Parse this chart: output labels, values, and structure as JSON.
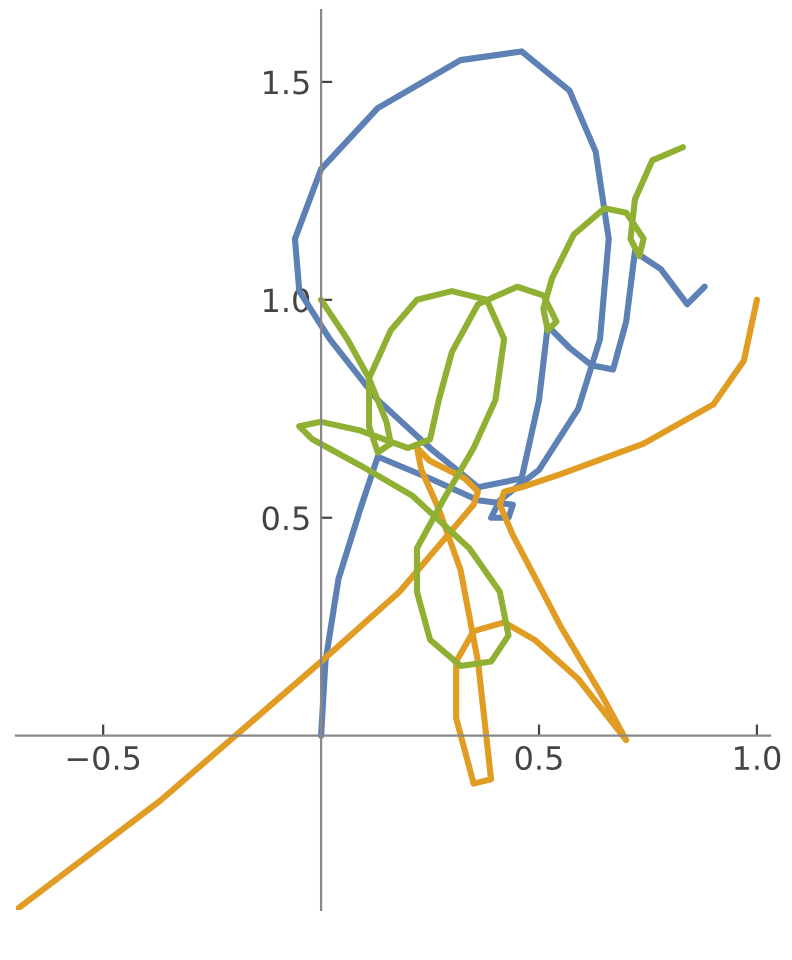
{
  "chart_data": {
    "type": "line",
    "xlim": [
      -0.7,
      1.03
    ],
    "ylim": [
      -0.4,
      1.665
    ],
    "xticks": [
      {
        "value": -0.5,
        "label": "−0.5"
      },
      0.5,
      {
        "value": 1.0,
        "label": "1.0"
      }
    ],
    "yticks": [
      0.5,
      {
        "value": 1.0,
        "label": "1.0"
      },
      1.5
    ],
    "grid": false,
    "marker": "none",
    "line_style": "solid",
    "series": [
      {
        "color": "#5e81b5",
        "x": [
          0,
          0.01,
          0.04,
          0.09,
          0.13,
          0.25,
          0.36,
          0.44,
          0.43,
          0.39,
          0.41,
          0.5,
          0.59,
          0.64,
          0.66,
          0.63,
          0.57,
          0.46,
          0.32,
          0.13,
          0.0,
          -0.06,
          -0.05,
          0.02,
          0.13,
          0.25,
          0.36,
          0.46,
          0.5,
          0.52,
          0.57,
          0.62,
          0.67,
          0.7,
          0.72,
          0.78,
          0.84,
          0.88
        ],
        "values": [
          0,
          0.17,
          0.36,
          0.52,
          0.64,
          0.59,
          0.54,
          0.53,
          0.5,
          0.5,
          0.54,
          0.61,
          0.75,
          0.91,
          1.14,
          1.34,
          1.48,
          1.57,
          1.55,
          1.44,
          1.3,
          1.14,
          1.02,
          0.91,
          0.77,
          0.66,
          0.57,
          0.59,
          0.77,
          0.94,
          0.89,
          0.85,
          0.84,
          0.95,
          1.11,
          1.07,
          0.99,
          1.03
        ]
      },
      {
        "color": "#e19c24",
        "x": [
          -0.7,
          -0.37,
          0,
          0.18,
          0.35,
          0.36,
          0.33,
          0.25,
          0.22,
          0.23,
          0.27,
          0.32,
          0.36,
          0.39,
          0.35,
          0.31,
          0.31,
          0.35,
          0.42,
          0.49,
          0.59,
          0.7,
          0.64,
          0.55,
          0.44,
          0.41,
          0.42,
          0.46,
          0.55,
          0.74,
          0.9,
          0.97,
          1.0
        ],
        "values": [
          -0.4,
          -0.15,
          0.17,
          0.33,
          0.53,
          0.56,
          0.59,
          0.63,
          0.66,
          0.61,
          0.52,
          0.38,
          0.17,
          -0.1,
          -0.11,
          0.04,
          0.17,
          0.24,
          0.26,
          0.22,
          0.13,
          -0.01,
          0.1,
          0.25,
          0.46,
          0.53,
          0.56,
          0.57,
          0.6,
          0.67,
          0.76,
          0.86,
          1.0
        ]
      },
      {
        "color": "#8fb032",
        "x": [
          0,
          0.06,
          0.11,
          0.15,
          0.16,
          0.13,
          0.11,
          0.11,
          0.16,
          0.22,
          0.3,
          0.38,
          0.42,
          0.4,
          0.35,
          0.28,
          0.22,
          0.22,
          0.25,
          0.32,
          0.39,
          0.43,
          0.41,
          0.34,
          0.21,
          0.09,
          -0.02,
          -0.05,
          0,
          0.09,
          0.2,
          0.25,
          0.27,
          0.3,
          0.36,
          0.45,
          0.51,
          0.54,
          0.52,
          0.51,
          0.53,
          0.58,
          0.65,
          0.7,
          0.74,
          0.73,
          0.71,
          0.72,
          0.76,
          0.83
        ],
        "values": [
          1.0,
          0.91,
          0.82,
          0.72,
          0.67,
          0.65,
          0.71,
          0.82,
          0.93,
          1.0,
          1.02,
          1.0,
          0.91,
          0.77,
          0.66,
          0.54,
          0.43,
          0.33,
          0.22,
          0.16,
          0.17,
          0.23,
          0.33,
          0.43,
          0.55,
          0.62,
          0.68,
          0.71,
          0.72,
          0.7,
          0.66,
          0.68,
          0.77,
          0.88,
          0.99,
          1.03,
          1.01,
          0.95,
          0.93,
          0.98,
          1.05,
          1.15,
          1.21,
          1.2,
          1.14,
          1.1,
          1.14,
          1.23,
          1.32,
          1.35
        ]
      }
    ]
  }
}
